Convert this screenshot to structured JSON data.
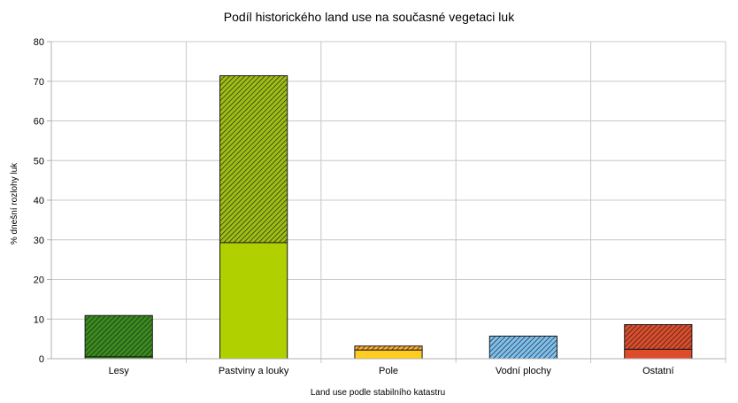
{
  "chart_data": {
    "type": "bar",
    "title": "Podíl historického land use na současné vegetaci luk",
    "xlabel": "Land use podle stabilního katastru",
    "ylabel": "% dnešní rozlohy luk",
    "ylim": [
      0,
      80
    ],
    "yticks": [
      0,
      10,
      20,
      30,
      40,
      50,
      60,
      70,
      80
    ],
    "grid": true,
    "legend": "none",
    "stacked": true,
    "categories": [
      "Lesy",
      "Pastviny a louky",
      "Pole",
      "Vodní plochy",
      "Ostatní"
    ],
    "series": [
      {
        "values": [
          0.5,
          29.3,
          2.2,
          0,
          2.4
        ]
      },
      {
        "values": [
          10.4,
          42.1,
          1.0,
          5.7,
          6.2
        ]
      }
    ],
    "colors": {
      "solid": [
        "#3a8c1e",
        "#b0d000",
        "#ffcc22",
        "#7ec0ee",
        "#dd4d2c"
      ],
      "hatched": [
        "#3a8c1e",
        "#9fbe14",
        "#ffaa30",
        "#7ec0ee",
        "#dd4d2c"
      ]
    }
  }
}
